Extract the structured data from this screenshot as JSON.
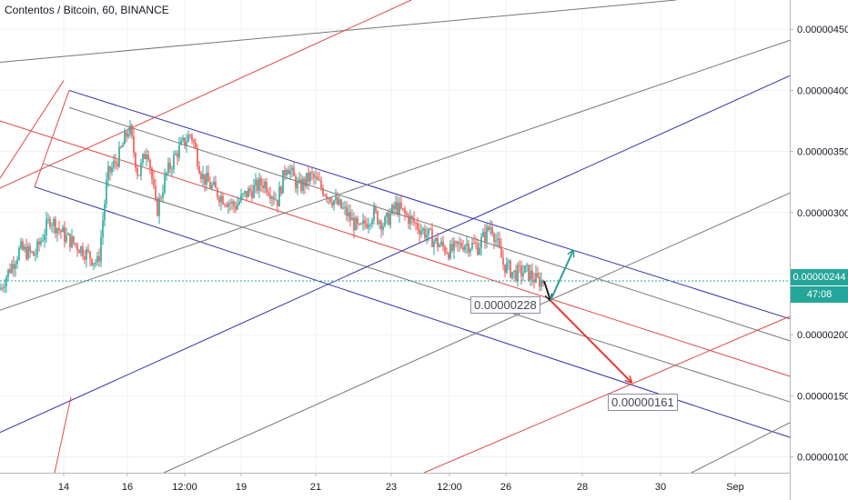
{
  "header": {
    "title": "Contentos / Bitcoin, 60, BINANCE"
  },
  "colors": {
    "blue_channel": "#3131a8",
    "red_line": "#e04a4a",
    "gray_line": "#777777",
    "current_price": "#26a69a",
    "arrow_green": "#2aa198",
    "arrow_red": "#e53935"
  },
  "annotations": {
    "level_mid": "0.00000228",
    "level_low": "0.00000161"
  },
  "price_tags": {
    "current_price": "0.00000244",
    "countdown": "47:08"
  },
  "chart_data": {
    "type": "candlestick",
    "title": "Contentos / Bitcoin, 60, BINANCE",
    "x_tick_labels": [
      "14",
      "16",
      "12:00",
      "19",
      "21",
      "23",
      "12:00",
      "26",
      "28",
      "30",
      "Sep"
    ],
    "y_tick_labels": [
      "0.00000100",
      "0.00000150",
      "0.00000200",
      "0.00000250",
      "0.00000300",
      "0.00000350",
      "0.00000400",
      "0.00000450"
    ],
    "ylim": [
      8.7e-07,
      4.74e-06
    ],
    "current_price": 2.44e-06,
    "price_path": [
      [
        0,
        2.37e-06
      ],
      [
        8,
        2.5e-06
      ],
      [
        22,
        2.7e-06
      ],
      [
        38,
        2.65e-06
      ],
      [
        55,
        2.95e-06
      ],
      [
        72,
        2.8e-06
      ],
      [
        90,
        2.7e-06
      ],
      [
        108,
        2.58e-06
      ],
      [
        118,
        3.3e-06
      ],
      [
        130,
        3.45e-06
      ],
      [
        142,
        3.7e-06
      ],
      [
        152,
        3.3e-06
      ],
      [
        162,
        3.55e-06
      ],
      [
        172,
        3e-06
      ],
      [
        182,
        3.3e-06
      ],
      [
        195,
        3.5e-06
      ],
      [
        210,
        3.65e-06
      ],
      [
        222,
        3.3e-06
      ],
      [
        240,
        3.15e-06
      ],
      [
        258,
        3.05e-06
      ],
      [
        270,
        3.15e-06
      ],
      [
        290,
        3.25e-06
      ],
      [
        305,
        3.1e-06
      ],
      [
        315,
        3.4e-06
      ],
      [
        328,
        3.2e-06
      ],
      [
        342,
        3.3e-06
      ],
      [
        360,
        3.15e-06
      ],
      [
        380,
        3e-06
      ],
      [
        395,
        2.85e-06
      ],
      [
        410,
        3e-06
      ],
      [
        422,
        2.9e-06
      ],
      [
        435,
        3.05e-06
      ],
      [
        450,
        2.95e-06
      ],
      [
        465,
        2.85e-06
      ],
      [
        480,
        2.75e-06
      ],
      [
        495,
        2.68e-06
      ],
      [
        510,
        2.75e-06
      ],
      [
        525,
        2.72e-06
      ],
      [
        540,
        2.9e-06
      ],
      [
        553,
        2.58e-06
      ],
      [
        565,
        2.5e-06
      ],
      [
        578,
        2.52e-06
      ],
      [
        590,
        2.44e-06
      ],
      [
        598,
        2.44e-06
      ]
    ],
    "projection_arrows": [
      {
        "from": [
          598,
          2.44e-06
        ],
        "to": [
          605,
          2.28e-06
        ],
        "color": "arrow_black"
      },
      {
        "from": [
          605,
          2.28e-06
        ],
        "to": [
          630,
          2.69e-06
        ],
        "color": "arrow_green"
      },
      {
        "from": [
          605,
          2.28e-06
        ],
        "to": [
          694,
          1.61e-06
        ],
        "color": "arrow_red"
      }
    ],
    "pitchfork": {
      "channel_lines": [
        {
          "from": [
            76,
            4e-06
          ],
          "to": [
            868,
            2.13e-06
          ],
          "color": "blue_channel"
        },
        {
          "from": [
            38,
            3.21e-06
          ],
          "to": [
            868,
            1.16e-06
          ],
          "color": "blue_channel"
        },
        {
          "from": [
            76,
            3.86e-06
          ],
          "to": [
            868,
            1.95e-06
          ],
          "color": "gray_line"
        },
        {
          "from": [
            48,
            3.4e-06
          ],
          "to": [
            868,
            1.45e-06
          ],
          "color": "gray_line"
        },
        {
          "from": [
            0,
            3.75e-06
          ],
          "to": [
            868,
            1.66e-06
          ],
          "color": "red_line"
        }
      ],
      "diagonal_lines": [
        {
          "from": [
            0,
            4.23e-06
          ],
          "to": [
            743,
            4.74e-06
          ],
          "color": "gray_line"
        },
        {
          "from": [
            0,
            3.2e-06
          ],
          "to": [
            452,
            4.74e-06
          ],
          "color": "red_line"
        },
        {
          "from": [
            0,
            2.2e-06
          ],
          "to": [
            868,
            4.41e-06
          ],
          "color": "gray_line"
        },
        {
          "from": [
            0,
            1.2e-06
          ],
          "to": [
            868,
            4.12e-06
          ],
          "color": "blue_channel"
        },
        {
          "from": [
            180,
            8.7e-07
          ],
          "to": [
            868,
            3.16e-06
          ],
          "color": "gray_line"
        },
        {
          "from": [
            466,
            8.7e-07
          ],
          "to": [
            868,
            2.15e-06
          ],
          "color": "red_line"
        },
        {
          "from": [
            760,
            8.7e-07
          ],
          "to": [
            868,
            1.28e-06
          ],
          "color": "gray_line"
        },
        {
          "from": [
            60,
            8.7e-07
          ],
          "to": [
            78,
            1.49e-06
          ],
          "color": "red_line"
        },
        {
          "from": [
            0,
            3.28e-06
          ],
          "to": [
            70,
            4.08e-06
          ],
          "color": "red_line"
        }
      ]
    },
    "grid": true,
    "legend": "none"
  }
}
